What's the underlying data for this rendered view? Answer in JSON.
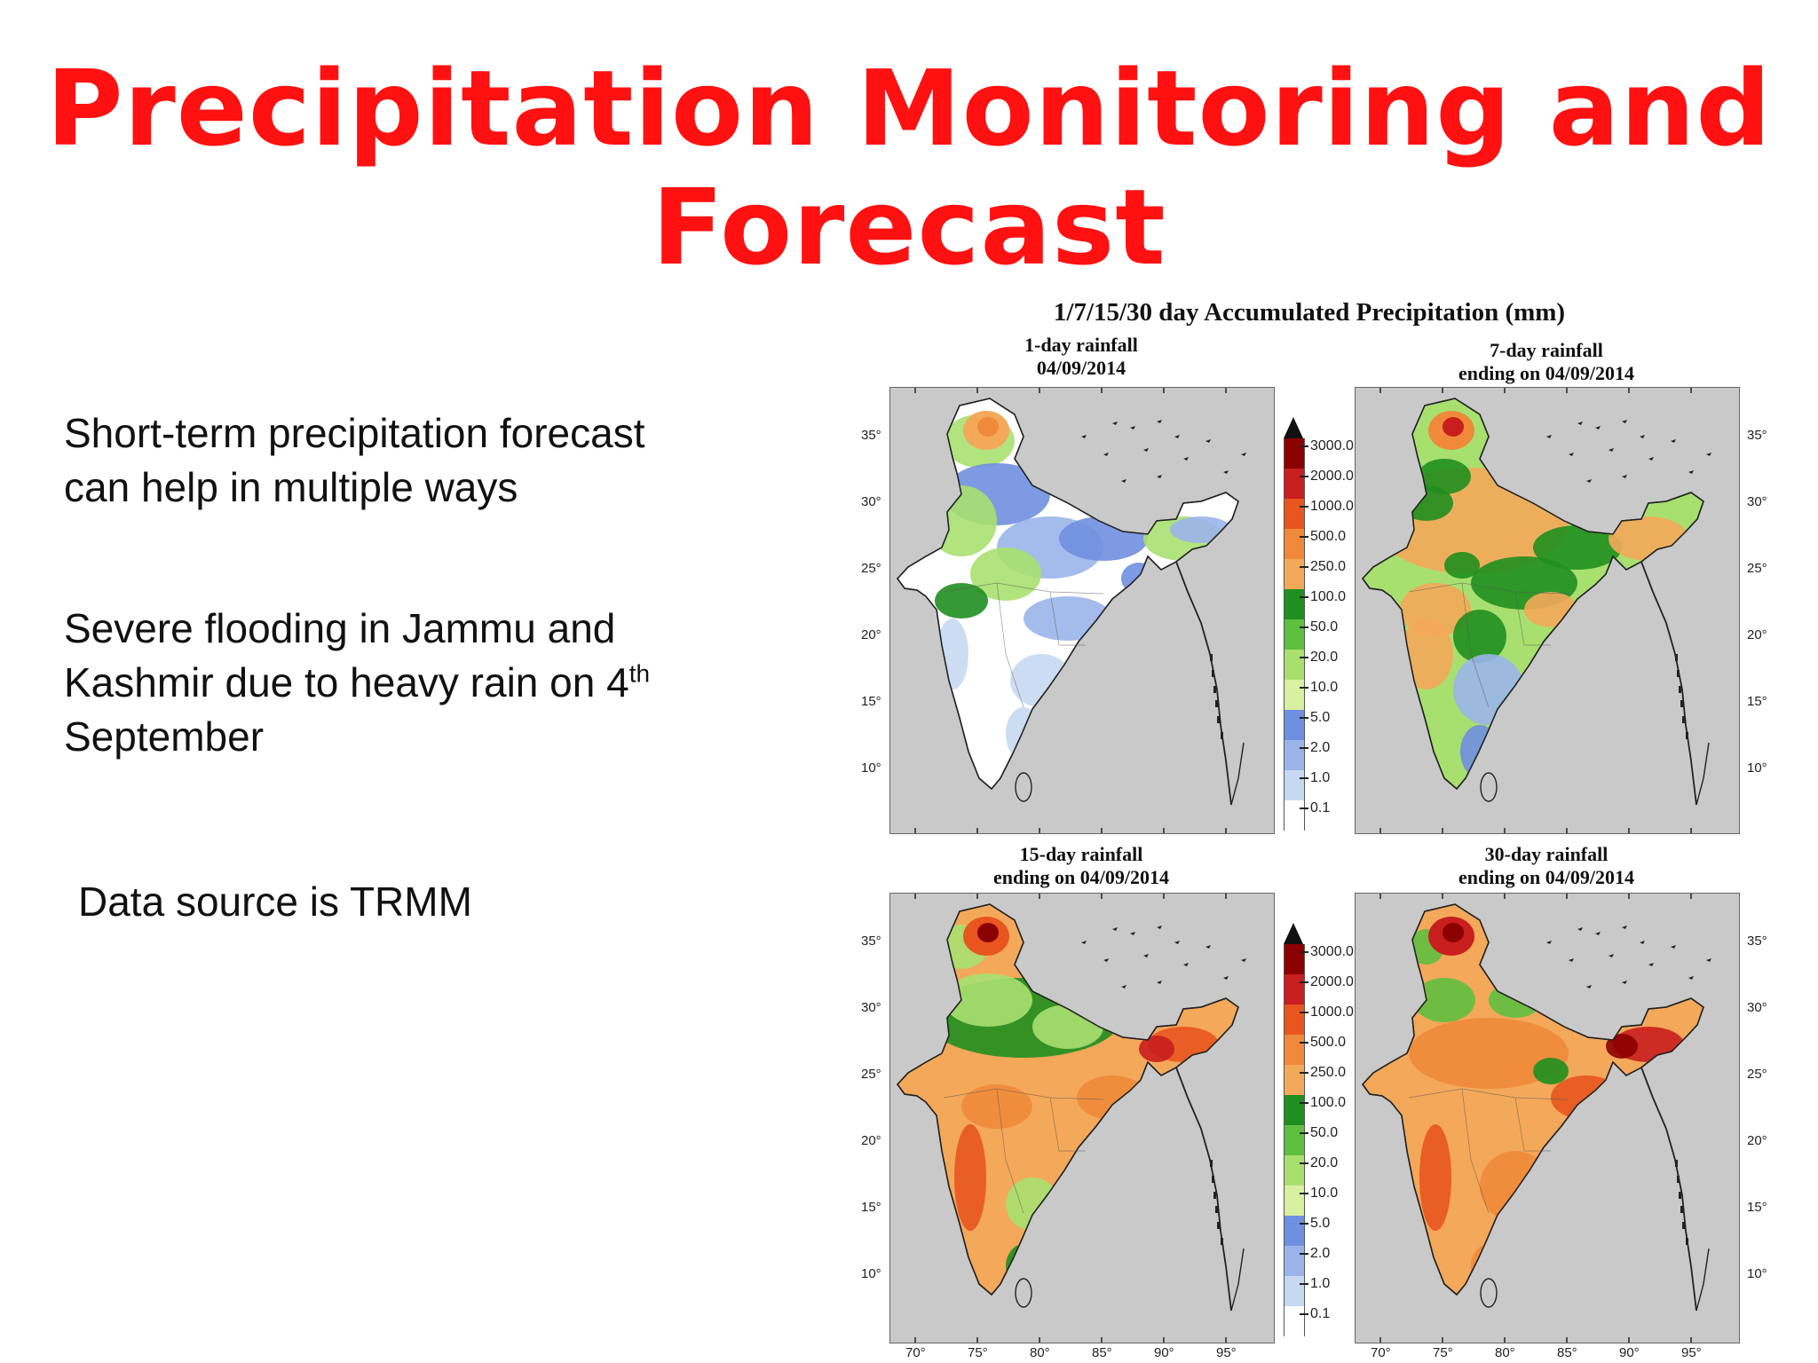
{
  "slide": {
    "title_line1": "Precipitation Monitoring and",
    "title_line2": "Forecast",
    "title_color": "#ff1111"
  },
  "bullets": {
    "b1_line1": "Short-term precipitation forecast",
    "b1_line2": "can help in multiple ways",
    "b2_line1": "Severe flooding in Jammu and",
    "b2_line2": "Kashmir due to heavy rain on 4",
    "b2_sup": "th",
    "b2_line3": "September",
    "b3": "Data source is TRMM"
  },
  "figure": {
    "title": "1/7/15/30 day Accumulated Precipitation (mm)",
    "panels": [
      {
        "line1": "1-day rainfall",
        "line2": "04/09/2014"
      },
      {
        "line1": "7-day rainfall",
        "line2": "ending on 04/09/2014"
      },
      {
        "line1": "15-day rainfall",
        "line2": "ending on 04/09/2014"
      },
      {
        "line1": "30-day rainfall",
        "line2": "ending on 04/09/2014"
      }
    ],
    "colorbar_levels": [
      "3000.0",
      "2000.0",
      "1000.0",
      "500.0",
      "250.0",
      "100.0",
      "50.0",
      "20.0",
      "10.0",
      "5.0",
      "2.0",
      "1.0",
      "0.1"
    ],
    "colorbar_colors": [
      "#8b0000",
      "#c81e1e",
      "#e8551f",
      "#f08a3a",
      "#f4a85a",
      "#1f8f1f",
      "#5fbf3f",
      "#a8e070",
      "#d8f0a0",
      "#6f8fe0",
      "#9ab5ea",
      "#c6d9f2",
      "#ffffff"
    ],
    "lat_labels": [
      "35°",
      "30°",
      "25°",
      "20°",
      "15°",
      "10°"
    ],
    "lon_labels": [
      "70°",
      "75°",
      "80°",
      "85°",
      "90°",
      "95°"
    ]
  }
}
